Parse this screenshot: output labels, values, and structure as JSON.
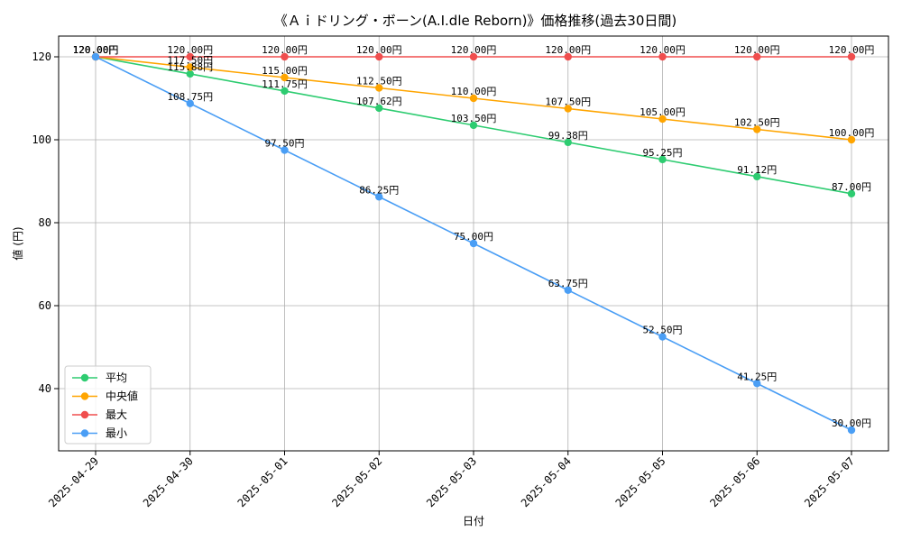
{
  "chart_data": {
    "type": "line",
    "title": "《Ａｉドリング・ボーン(A.I.dle Reborn)》価格推移(過去30日間)",
    "xlabel": "日付",
    "ylabel": "値 (円)",
    "categories": [
      "2025-04-29",
      "2025-04-30",
      "2025-05-01",
      "2025-05-02",
      "2025-05-03",
      "2025-05-04",
      "2025-05-05",
      "2025-05-06",
      "2025-05-07"
    ],
    "ylim": [
      25,
      125
    ],
    "yticks": [
      40,
      60,
      80,
      100,
      120
    ],
    "grid": true,
    "legend_position": "lower-left",
    "label_suffix": "円",
    "series": [
      {
        "name": "平均",
        "color": "#2ecc71",
        "values": [
          120.0,
          115.88,
          111.75,
          107.62,
          103.5,
          99.38,
          95.25,
          91.12,
          87.0
        ],
        "labels": [
          "120.00円",
          "115.88円",
          "111.75円",
          "107.62円",
          "103.50円",
          "99.38円",
          "95.25円",
          "91.12円",
          "87.00円"
        ]
      },
      {
        "name": "中央値",
        "color": "#ffa500",
        "values": [
          120.0,
          117.5,
          115.0,
          112.5,
          110.0,
          107.5,
          105.0,
          102.5,
          100.0
        ],
        "labels": [
          "120.00円",
          "117.50円",
          "115.00円",
          "112.50円",
          "110.00円",
          "107.50円",
          "105.00円",
          "102.50円",
          "100.00円"
        ]
      },
      {
        "name": "最大",
        "color": "#f04e4e",
        "values": [
          120.0,
          120.0,
          120.0,
          120.0,
          120.0,
          120.0,
          120.0,
          120.0,
          120.0
        ],
        "labels": [
          "120.00円",
          "120.00円",
          "120.00円",
          "120.00円",
          "120.00円",
          "120.00円",
          "120.00円",
          "120.00円",
          "120.00円"
        ]
      },
      {
        "name": "最小",
        "color": "#4a9ef5",
        "values": [
          120.0,
          108.75,
          97.5,
          86.25,
          75.0,
          63.75,
          52.5,
          41.25,
          30.0
        ],
        "labels": [
          "120.00円",
          "108.75円",
          "97.50円",
          "86.25円",
          "75.00円",
          "63.75円",
          "52.50円",
          "41.25円",
          "30.00円"
        ]
      }
    ]
  }
}
